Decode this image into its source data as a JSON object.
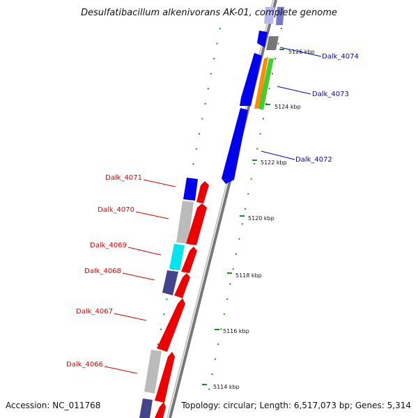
{
  "title": "Desulfatibacillum alkenivorans AK-01, complete genome",
  "footer": {
    "accession": "Accession: NC_011768",
    "summary": "Topology: circular; Length: 6,517,073 bp; Genes: 5,314"
  },
  "ticks": [
    "5126 kbp",
    "5124 kbp",
    "5122 kbp",
    "5120 kbp",
    "5118 kbp",
    "5116 kbp",
    "5114 kbp"
  ],
  "genes_forward": [
    "Dalk_4074",
    "Dalk_4073",
    "Dalk_4072"
  ],
  "genes_reverse": [
    "Dalk_4071",
    "Dalk_4070",
    "Dalk_4069",
    "Dalk_4068",
    "Dalk_4067",
    "Dalk_4066"
  ],
  "colors": {
    "forward_label": "#0000cc",
    "reverse_label": "#dd0000",
    "cds_blue": "#0000ee",
    "cds_red": "#ee0000",
    "rna_gray": "#bbbbbb",
    "cyan": "#00e5ee",
    "navy": "#44448a",
    "orange": "#ff8c00",
    "green": "#44cc33",
    "tick_green": "#228822",
    "backbone": "#888888"
  }
}
